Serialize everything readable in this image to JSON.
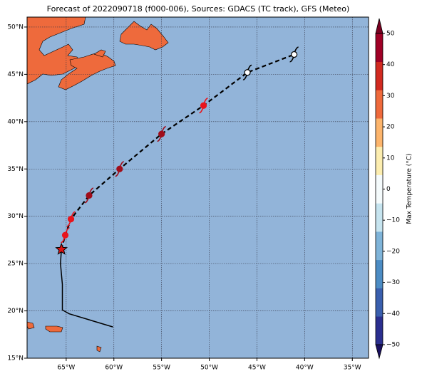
{
  "map": {
    "title": "Forecast of 2022090718 (f000-006), Sources: GDACS (TC track), GFS (Meteo)",
    "xlim": [
      -69.1,
      -33.3
    ],
    "ylim": [
      15,
      51.05
    ],
    "ocean_color": "#92b4d9",
    "land_color": "#ee6a3c",
    "grid": true,
    "xticks": [
      {
        "value": -65,
        "label": "65°W"
      },
      {
        "value": -60,
        "label": "60°W"
      },
      {
        "value": -55,
        "label": "55°W"
      },
      {
        "value": -50,
        "label": "50°W"
      },
      {
        "value": -45,
        "label": "45°W"
      },
      {
        "value": -40,
        "label": "40°W"
      },
      {
        "value": -35,
        "label": "35°W"
      }
    ],
    "yticks": [
      {
        "value": 15,
        "label": "15°N"
      },
      {
        "value": 20,
        "label": "20°N"
      },
      {
        "value": 25,
        "label": "25°N"
      },
      {
        "value": 30,
        "label": "30°N"
      },
      {
        "value": 35,
        "label": "35°N"
      },
      {
        "value": 40,
        "label": "40°N"
      },
      {
        "value": 45,
        "label": "45°N"
      },
      {
        "value": 50,
        "label": "50°N"
      }
    ],
    "past_track": {
      "lon": [
        -60.1,
        -64.7,
        -65.4,
        -65.4,
        -65.6,
        -65.5
      ],
      "lat": [
        18.3,
        19.7,
        20.1,
        22.8,
        25.0,
        26.5
      ]
    },
    "forecast_track": {
      "lon": [
        -65.5,
        -65.1,
        -64.5,
        -62.6,
        -59.4,
        -55.0,
        -50.6,
        -46.0,
        -41.1
      ],
      "lat": [
        26.5,
        28.0,
        29.7,
        32.2,
        35.0,
        38.7,
        41.7,
        45.2,
        47.1
      ],
      "colors": [
        "#000000",
        "#e8141c",
        "#e8141c",
        "#a00d1a",
        "#a00d1a",
        "#a00d1a",
        "#e8141c",
        "#ffffff",
        "#ffffff"
      ]
    },
    "colorbar": {
      "label": "Max Temperature (°C)",
      "lim": [
        -50,
        50
      ],
      "ticks": [
        {
          "value": -50,
          "label": "−50"
        },
        {
          "value": -40,
          "label": "−40"
        },
        {
          "value": -30,
          "label": "−30"
        },
        {
          "value": -20,
          "label": "−20"
        },
        {
          "value": -10,
          "label": "−10"
        },
        0,
        10,
        20,
        30,
        40,
        50
      ],
      "colors": [
        "#2b2f8f",
        "#3a5fae",
        "#4c8cc4",
        "#7fb4d9",
        "#c6e4ef",
        "#f5fbfc",
        "#fdeeb0",
        "#fdb56c",
        "#ef6a3c",
        "#d22a20",
        "#a00026"
      ],
      "under_color": "#1a1060",
      "over_color": "#7a0020"
    }
  }
}
